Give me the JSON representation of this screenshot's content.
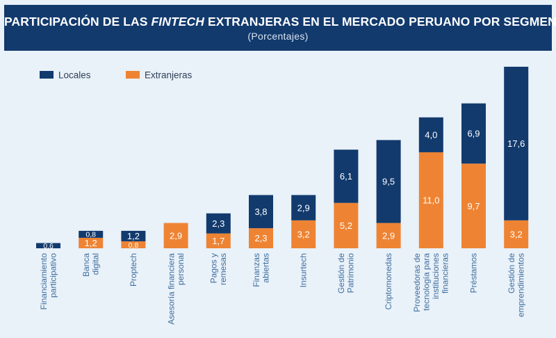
{
  "header": {
    "title_before": "PARTICIPACIÓN DE LAS ",
    "title_italic": "FINTECH",
    "title_after": " EXTRANJERAS EN EL MERCADO PERUANO POR SEGMENTO",
    "subtitle": "(Porcentajes)"
  },
  "colors": {
    "background": "#e9f1f9",
    "header_bg": "#123a6d",
    "locales": "#123a6d",
    "extranjeras": "#ee8433",
    "axis_text": "#3f6e9d"
  },
  "chart_data": {
    "type": "bar",
    "stacked": true,
    "legend_position": "top-left",
    "categories": [
      [
        "Financiamiento",
        "participativo"
      ],
      [
        "Banca",
        "digital"
      ],
      [
        "Proptech"
      ],
      [
        "Asesoría financiera",
        "personal"
      ],
      [
        "Pagos y",
        "remesas"
      ],
      [
        "Finanzas",
        "abiertas"
      ],
      [
        "Insurtech"
      ],
      [
        "Gestión de",
        "Patrimonio"
      ],
      [
        "Criptomonedas"
      ],
      [
        "Proveedoras de",
        "tecnología para",
        "instituciones",
        "financieras"
      ],
      [
        "Préstamos"
      ],
      [
        "Gestión de",
        "emprendimientos"
      ]
    ],
    "series": [
      {
        "name": "Extranjeras",
        "values": [
          0,
          1.2,
          0.8,
          2.9,
          1.7,
          2.3,
          3.2,
          5.2,
          2.9,
          11.0,
          9.7,
          3.2
        ],
        "labels": [
          "",
          "1,2",
          "0,8",
          "2,9",
          "1,7",
          "2,3",
          "3,2",
          "5,2",
          "2,9",
          "11,0",
          "9,7",
          "3,2"
        ]
      },
      {
        "name": "Locales",
        "values": [
          0.6,
          0.8,
          1.2,
          0,
          2.3,
          3.8,
          2.9,
          6.1,
          9.5,
          4.0,
          6.9,
          17.6
        ],
        "labels": [
          "0,6",
          "0,8",
          "1,2",
          "",
          "2,3",
          "3,8",
          "2,9",
          "6,1",
          "9,5",
          "4,0",
          "6,9",
          "17,6"
        ]
      }
    ],
    "legend": [
      "Locales",
      "Extranjeras"
    ],
    "grid": false,
    "ylim": [
      0,
      20.8
    ]
  }
}
